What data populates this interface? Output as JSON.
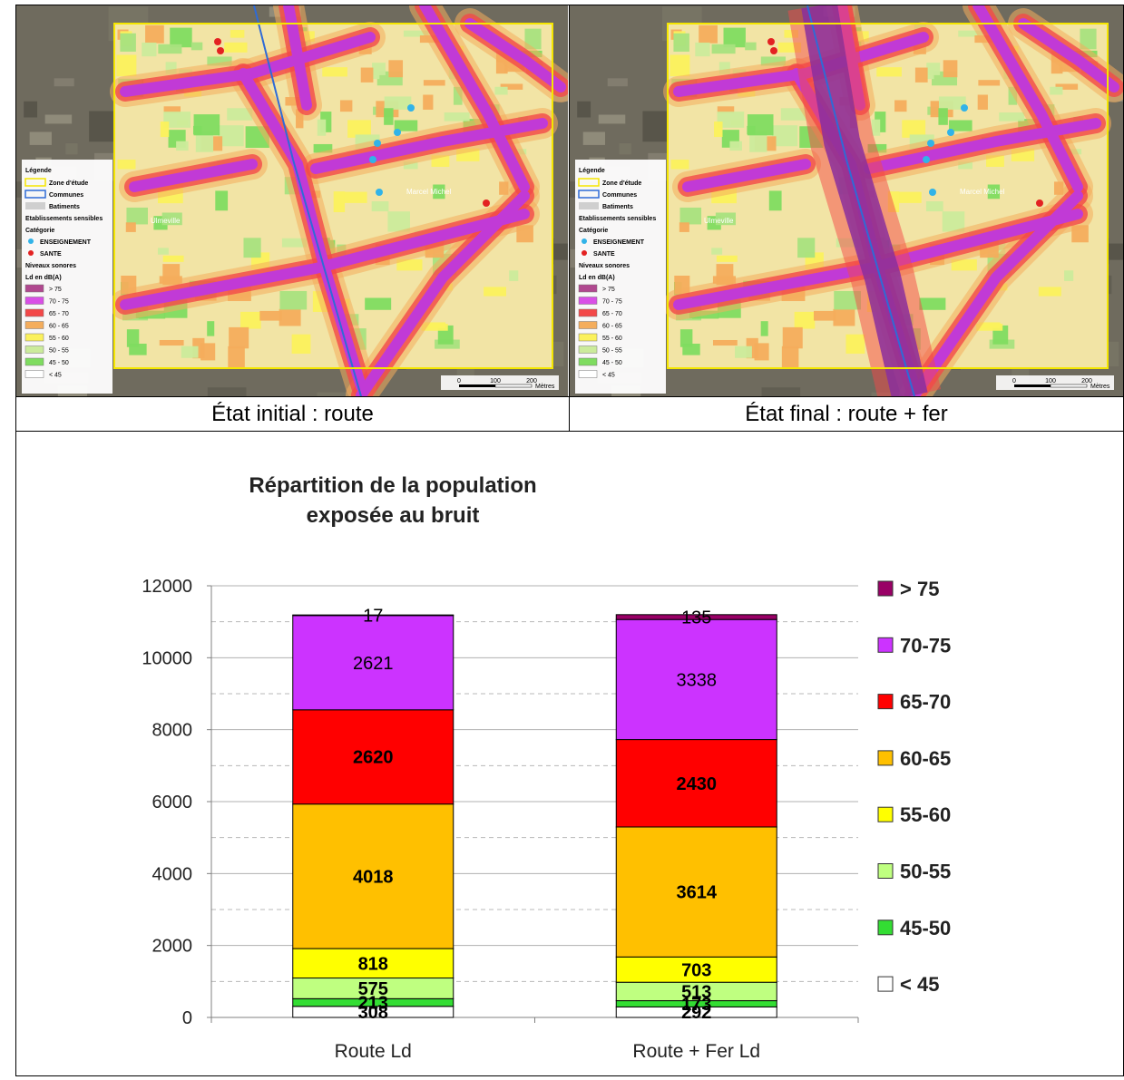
{
  "captions": {
    "left": "État initial : route",
    "right": "État final : route + fer"
  },
  "map_legend": {
    "title": "Légende",
    "items": [
      "Zone d'étude",
      "Communes",
      "Batiments"
    ],
    "sensitive_title": "Etablissements sensibles",
    "category_title": "Catégorie",
    "categories": [
      "ENSEIGNEMENT",
      "SANTE"
    ],
    "noise_title": "Niveaux sonores",
    "unit_title": "Ld en dB(A)",
    "levels": [
      "> 75",
      "70 - 75",
      "65 - 70",
      "60 - 65",
      "55 - 60",
      "50 - 55",
      "45 - 50",
      "< 45"
    ],
    "level_colors": [
      "#b0488f",
      "#d94fe6",
      "#f34848",
      "#f4ad5c",
      "#fbf15c",
      "#cbeb9b",
      "#7fdc60",
      "#ffffff"
    ],
    "scale_labels": [
      "0",
      "100",
      "200"
    ],
    "scale_unit": "Mètres",
    "place_labels": [
      "Ulmeville",
      "Marcel Michel"
    ]
  },
  "chart_data": {
    "type": "bar",
    "stacked": true,
    "title": "Répartition de la population\nexposée au bruit",
    "title_lines": [
      "Répartition de la population",
      "exposée au bruit"
    ],
    "categories": [
      "Route Ld",
      "Route + Fer Ld"
    ],
    "ylim": [
      0,
      12000
    ],
    "yticks": [
      0,
      2000,
      4000,
      6000,
      8000,
      10000,
      12000
    ],
    "grid": true,
    "legend_position": "right",
    "series": [
      {
        "name": "< 45",
        "values": [
          308,
          292
        ],
        "color": "#ffffff",
        "label_bold": true
      },
      {
        "name": "45-50",
        "values": [
          213,
          173
        ],
        "color": "#33dd33",
        "label_bold": true
      },
      {
        "name": "50-55",
        "values": [
          575,
          513
        ],
        "color": "#bfff80",
        "label_bold": true
      },
      {
        "name": "55-60",
        "values": [
          818,
          703
        ],
        "color": "#ffff00",
        "label_bold": true
      },
      {
        "name": "60-65",
        "values": [
          4018,
          3614
        ],
        "color": "#ffc000",
        "label_bold": true
      },
      {
        "name": "65-70",
        "values": [
          2620,
          2430
        ],
        "color": "#ff0000",
        "label_bold": true
      },
      {
        "name": "70-75",
        "values": [
          2621,
          3338
        ],
        "color": "#cc33ff",
        "label_bold": false
      },
      {
        "name": "> 75",
        "values": [
          17,
          135
        ],
        "color": "#990066",
        "label_bold": false
      }
    ]
  }
}
